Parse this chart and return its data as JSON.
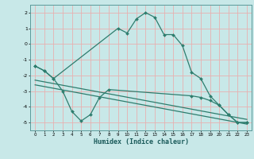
{
  "title": "",
  "xlabel": "Humidex (Indice chaleur)",
  "ylabel": "",
  "background_color": "#c8e8e8",
  "plot_bg_color": "#c8e8e8",
  "grid_color": "#e8b0b0",
  "line_color": "#2e7d6e",
  "xlim": [
    -0.5,
    23.5
  ],
  "ylim": [
    -5.5,
    2.5
  ],
  "yticks": [
    2,
    1,
    0,
    -1,
    -2,
    -3,
    -4,
    -5
  ],
  "xticks": [
    0,
    1,
    2,
    3,
    4,
    5,
    6,
    7,
    8,
    9,
    10,
    11,
    12,
    13,
    14,
    15,
    16,
    17,
    18,
    19,
    20,
    21,
    22,
    23
  ],
  "series": [
    {
      "x": [
        0,
        1,
        2,
        9,
        10,
        11,
        12,
        13,
        14,
        15,
        16,
        17,
        18,
        19,
        20,
        21,
        22,
        23
      ],
      "y": [
        -1.4,
        -1.7,
        -2.2,
        1.0,
        0.7,
        1.6,
        2.0,
        1.7,
        0.6,
        0.6,
        -0.1,
        -1.8,
        -2.2,
        -3.3,
        -3.9,
        -4.5,
        -5.0,
        -5.0
      ],
      "has_markers": true
    },
    {
      "x": [
        0,
        1,
        2,
        3,
        4,
        5,
        6,
        7,
        8,
        17,
        18,
        19,
        20,
        21,
        22,
        23
      ],
      "y": [
        -1.4,
        -1.7,
        -2.2,
        -3.0,
        -4.3,
        -4.9,
        -4.5,
        -3.4,
        -2.9,
        -3.3,
        -3.4,
        -3.6,
        -3.9,
        -4.5,
        -5.0,
        -5.0
      ],
      "has_markers": true
    },
    {
      "x": [
        0,
        23
      ],
      "y": [
        -2.3,
        -4.8
      ],
      "has_markers": false
    },
    {
      "x": [
        0,
        23
      ],
      "y": [
        -2.6,
        -5.1
      ],
      "has_markers": false
    }
  ]
}
